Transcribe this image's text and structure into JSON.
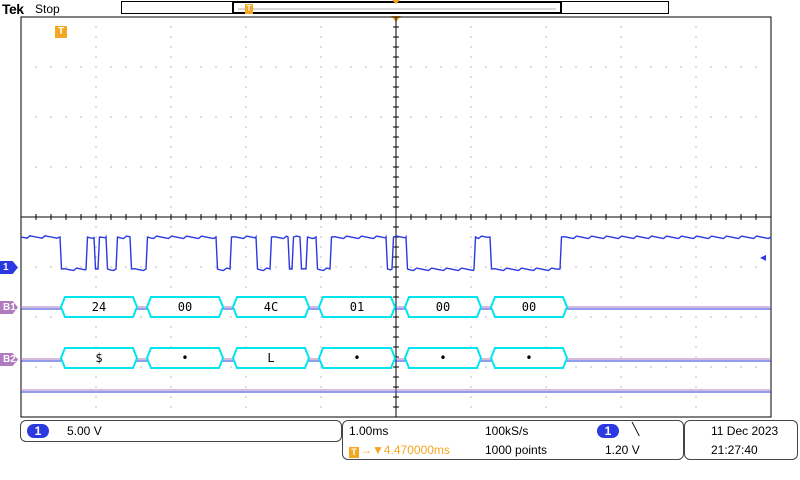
{
  "header": {
    "brand": "Tek",
    "run_state": "Stop",
    "record_trigger_glyph": "T",
    "trigger_position_glyph": "T"
  },
  "channels": {
    "ch1": {
      "marker": "1",
      "color": "#2a3ae0"
    },
    "b1": {
      "marker": "B1",
      "color": "#b07ac0"
    },
    "b2": {
      "marker": "B2",
      "color": "#b07ac0"
    }
  },
  "bus": {
    "b1_values": [
      "24",
      "00",
      "4C",
      "01",
      "00",
      "00"
    ],
    "b2_values": [
      "$",
      "•",
      "L",
      "•",
      "•",
      "•"
    ],
    "packet_color": "#00e5ee"
  },
  "status": {
    "ch_number": "1",
    "ch_scale": "5.00 V",
    "time_per_div": "1.00ms",
    "sample_rate": "100kS/s",
    "trigger_glyph": "T",
    "trigger_delay": "→▼4.470000ms",
    "record_length": "1000 points",
    "trigger_source": "1",
    "trigger_slope_icon": "falling-edge-icon",
    "trigger_slope_glyph": "╲",
    "trigger_level": "1.20 V",
    "date": "11 Dec  2023",
    "time": "21:27:40"
  },
  "colors": {
    "ch1": "#2a3ae0",
    "bus": "#b07ac0",
    "packet": "#00e5ee",
    "trigger": "#f5a623",
    "graticule": "#000000"
  }
}
